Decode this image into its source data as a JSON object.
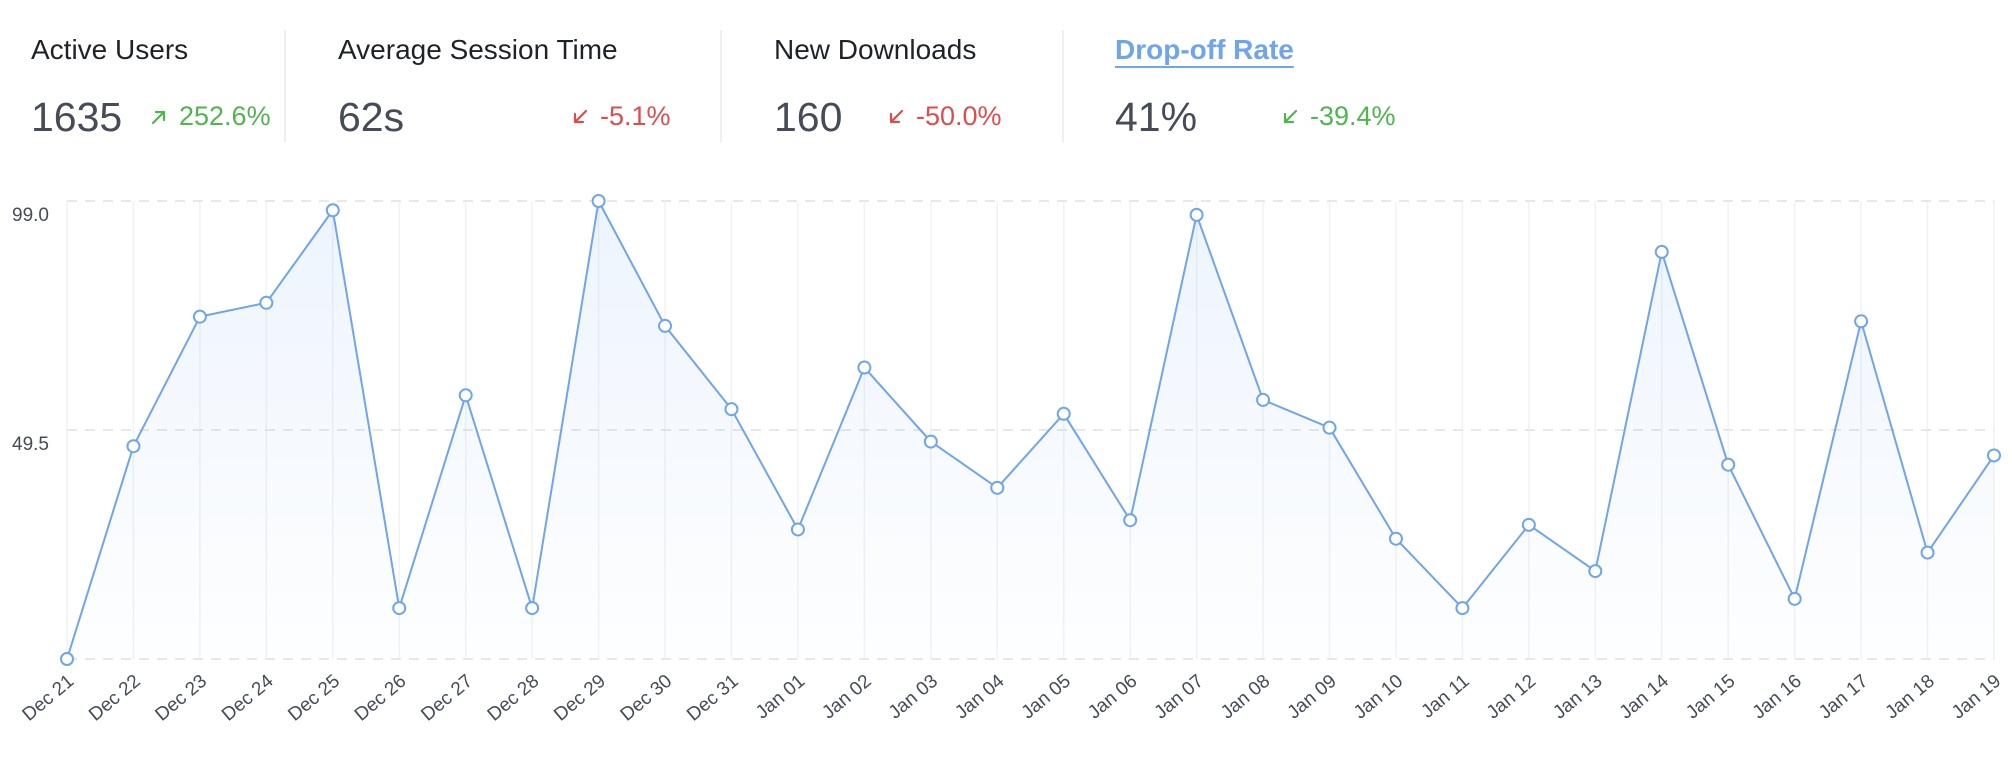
{
  "stats": [
    {
      "label": "Active Users",
      "value": "1635",
      "change": "252.6%",
      "direction": "up",
      "color": "#4db64d",
      "active": false
    },
    {
      "label": "Average Session Time",
      "value": "62s",
      "change": "-5.1%",
      "direction": "down",
      "color": "#e04c4c",
      "active": false
    },
    {
      "label": "New Downloads",
      "value": "160",
      "change": "-50.0%",
      "direction": "down",
      "color": "#e04c4c",
      "active": false
    },
    {
      "label": "Drop-off Rate",
      "value": "41%",
      "change": "-39.4%",
      "direction": "down",
      "color": "#4db64d",
      "active": true
    }
  ],
  "colors": {
    "line": "#6ea5ec",
    "grid": "#dde1e6",
    "active_tab": "#6ea5ec"
  },
  "chart_data": {
    "type": "area",
    "series_color": "#6ea5ec",
    "grid": true,
    "ylim": [
      0,
      99
    ],
    "y_ticks": [
      {
        "value": 99,
        "label": "99.0"
      },
      {
        "value": 49.5,
        "label": "49.5"
      }
    ],
    "categories": [
      "Dec 21",
      "Dec 22",
      "Dec 23",
      "Dec 24",
      "Dec 25",
      "Dec 26",
      "Dec 27",
      "Dec 28",
      "Dec 29",
      "Dec 30",
      "Dec 31",
      "Jan 01",
      "Jan 02",
      "Jan 03",
      "Jan 04",
      "Jan 05",
      "Jan 06",
      "Jan 07",
      "Jan 08",
      "Jan 09",
      "Jan 10",
      "Jan 11",
      "Jan 12",
      "Jan 13",
      "Jan 14",
      "Jan 15",
      "Jan 16",
      "Jan 17",
      "Jan 18",
      "Jan 19"
    ],
    "values": [
      0,
      46,
      74,
      77,
      97,
      11,
      57,
      11,
      99,
      72,
      54,
      28,
      63,
      47,
      37,
      53,
      30,
      96,
      56,
      50,
      26,
      11,
      29,
      19,
      88,
      42,
      13,
      73,
      23,
      44
    ]
  }
}
